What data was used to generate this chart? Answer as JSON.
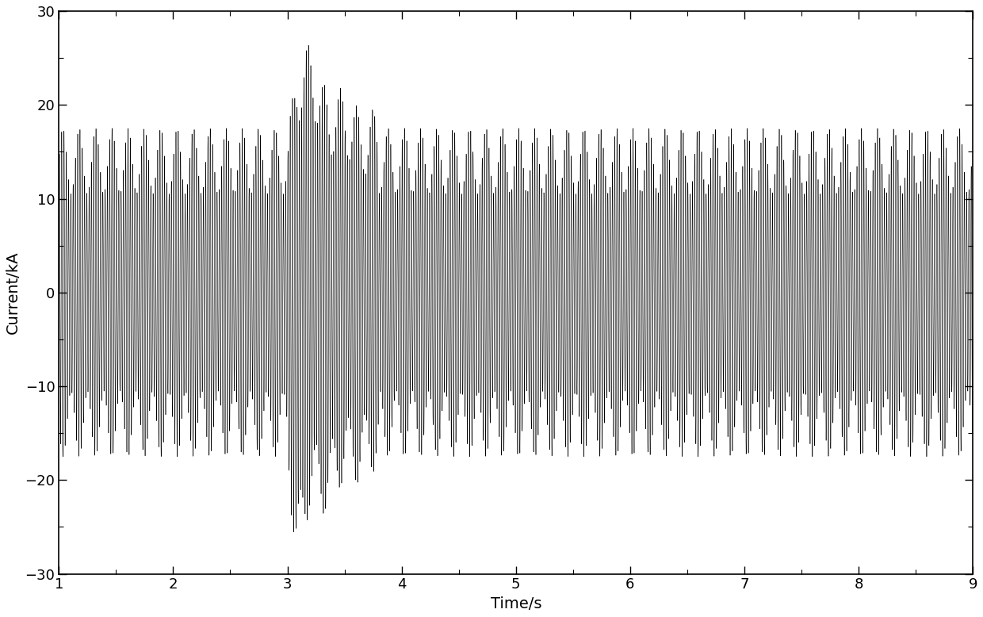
{
  "title": "",
  "xlabel": "Time/s",
  "ylabel": "Current/kA",
  "xlim": [
    1,
    9
  ],
  "ylim": [
    -30,
    30
  ],
  "yticks": [
    -30,
    -20,
    -10,
    0,
    10,
    20,
    30
  ],
  "xticks": [
    1,
    2,
    3,
    4,
    5,
    6,
    7,
    8,
    9
  ],
  "t_start": 1.0,
  "t_end": 9.0,
  "dt": 0.0002,
  "fs": 50,
  "sso_freq": 7.0,
  "sso_amp": 3.5,
  "amplitude_base": 14.0,
  "amplitude_fault_max": 24.0,
  "fault_start": 3.0,
  "fault_end": 3.8,
  "line_color": "#000000",
  "line_width": 0.4,
  "bg_color": "#ffffff",
  "figsize": [
    12.4,
    7.78
  ],
  "dpi": 100
}
